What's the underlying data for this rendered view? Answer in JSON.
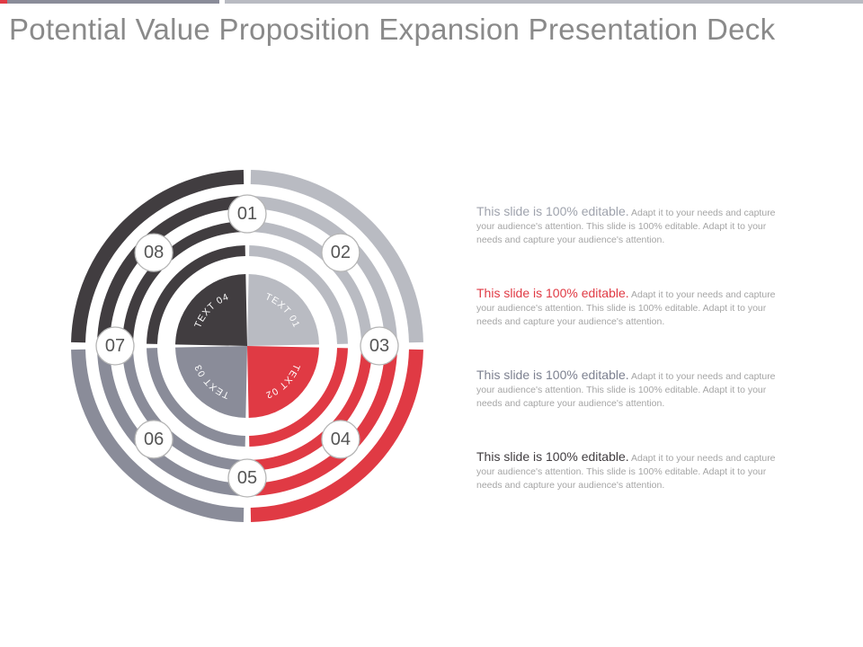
{
  "slide": {
    "title": "Potential Value Proposition Expansion Presentation Deck",
    "top_bar_colors": {
      "accent": "#e03a44",
      "dark": "#8a8c99",
      "light": "#b9bbc2"
    }
  },
  "diagram": {
    "quadrant_colors": {
      "top_right": "#b9bbc2",
      "bottom_right": "#e03a44",
      "bottom_left": "#8a8c99",
      "top_left": "#413d40"
    },
    "numbers": [
      "01",
      "02",
      "03",
      "04",
      "05",
      "06",
      "07",
      "08"
    ],
    "center_labels": [
      "TEXT 01",
      "TEXT 02",
      "TEXT 03",
      "TEXT 04"
    ]
  },
  "text_blocks": [
    {
      "lead": "This slide is 100% editable.",
      "lead_color": "#9fa3ad",
      "body": "Adapt it to your needs and capture your audience's attention. This slide is 100% editable. Adapt it to your needs and capture your audience's attention."
    },
    {
      "lead": "This slide is 100% editable.",
      "lead_color": "#e03a44",
      "body": "Adapt it to your needs and capture your audience's attention. This slide is 100% editable. Adapt it to your needs and capture your audience's attention."
    },
    {
      "lead": "This slide is 100% editable.",
      "lead_color": "#7d8190",
      "body": "Adapt it to your needs and capture your audience's attention. This slide is 100% editable. Adapt it to your needs and capture your audience's attention."
    },
    {
      "lead": "This slide is 100% editable.",
      "lead_color": "#413d40",
      "body": "Adapt it to your needs and capture your audience's attention. This slide is 100% editable. Adapt it to your needs and capture your audience's attention."
    }
  ]
}
